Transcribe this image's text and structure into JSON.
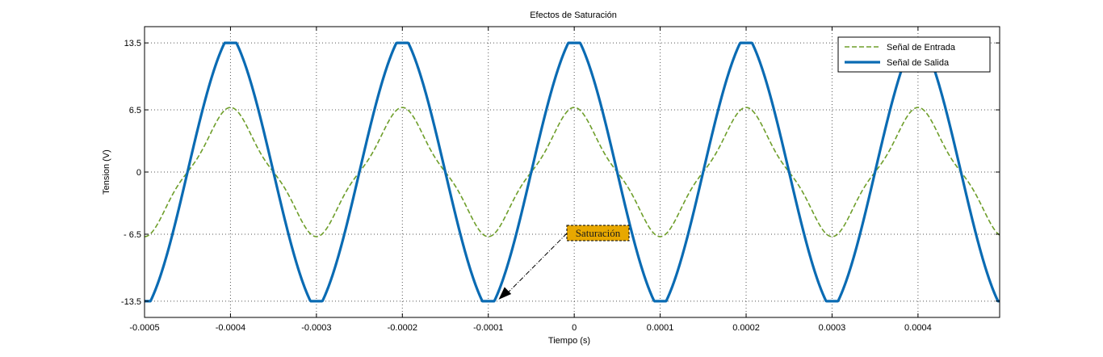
{
  "chart_data": {
    "type": "line",
    "title": "Efectos de Saturación",
    "xlabel": "Tiempo (s)",
    "ylabel": "Tension (V)",
    "xlim": [
      -0.0005,
      0.000495
    ],
    "ylim": [
      -15.2,
      15.2
    ],
    "x_ticks": [
      -0.0005,
      -0.0004,
      -0.0003,
      -0.0002,
      -0.0001,
      0,
      0.0001,
      0.0002,
      0.0003,
      0.0004
    ],
    "x_tick_labels": [
      "-0.0005",
      "-0.0004",
      "-0.0003",
      "-0.0002",
      "-0.0001",
      "0",
      "0.0001",
      "0.0002",
      "0.0003",
      "0.0004"
    ],
    "y_ticks": [
      -13.5,
      -6.5,
      0,
      6.5,
      13.5
    ],
    "y_tick_labels": [
      "-13.5",
      "- 6.5",
      "0",
      "6.5",
      "13.5"
    ],
    "grid": true,
    "legend_position": "top-right",
    "series": [
      {
        "name": "Señal de Entrada",
        "color": "#6e9e2a",
        "style": "dashed",
        "frequency_hz": 5000,
        "amplitude": 6.75,
        "phase_reference_peak_x": 0
      },
      {
        "name": "Señal de Salida",
        "color": "#0a6bb3",
        "style": "solid-thick",
        "frequency_hz": 5000,
        "gain": -2,
        "saturation": [
          -13.5,
          13.5
        ],
        "phase_reference_peak_x": 0
      }
    ],
    "annotations": [
      {
        "text": "Saturación",
        "text_x": 0.0,
        "text_y": -10.6,
        "arrow_to_x": -8.8e-05,
        "arrow_to_y": -13.5,
        "box_color": "#e8a800"
      }
    ]
  }
}
